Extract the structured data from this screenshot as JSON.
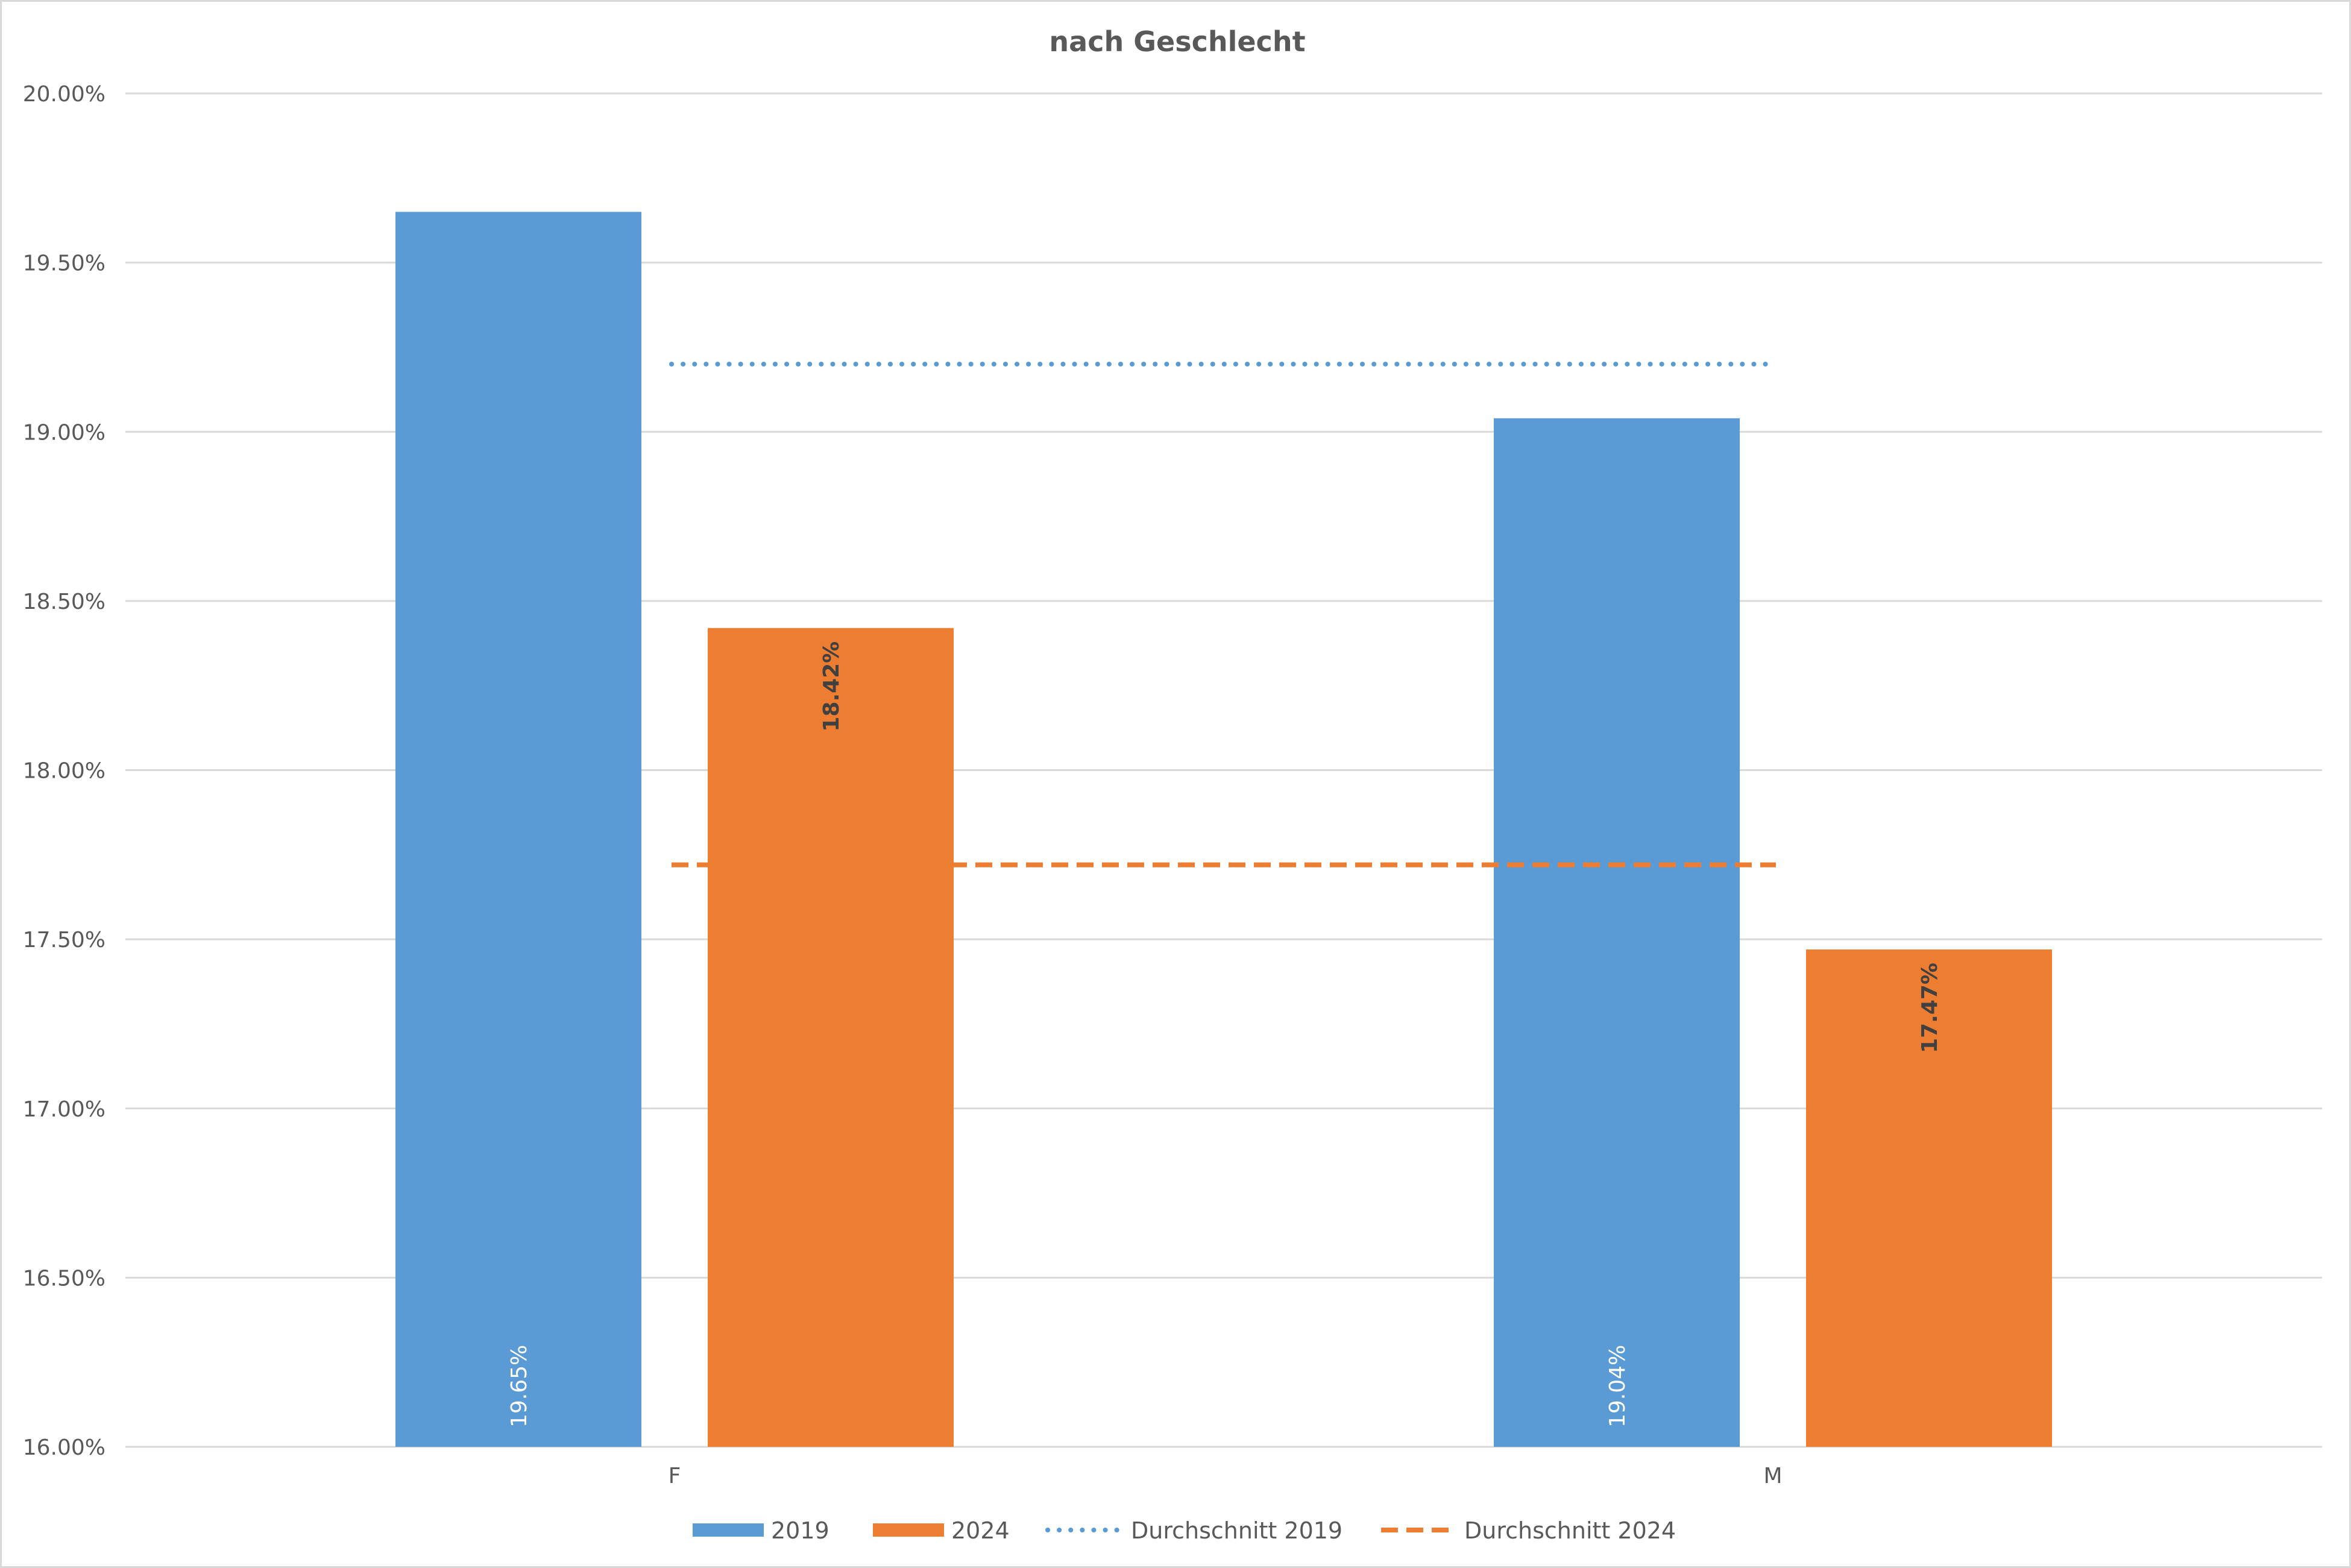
{
  "chart_data": {
    "type": "bar",
    "title": "nach Geschlecht",
    "xlabel": "",
    "ylabel": "",
    "categories": [
      "F",
      "M"
    ],
    "ylim": [
      0.16,
      0.2
    ],
    "y_ticks": [
      0.16,
      0.165,
      0.17,
      0.175,
      0.18,
      0.185,
      0.19,
      0.195,
      0.2
    ],
    "y_tick_labels": [
      "16.00%",
      "16.50%",
      "17.00%",
      "17.50%",
      "18.00%",
      "18.50%",
      "19.00%",
      "19.50%",
      "20.00%"
    ],
    "grid": true,
    "legend_position": "bottom",
    "series": [
      {
        "name": "2019",
        "type": "bar",
        "color": "#5b9bd5",
        "values": [
          0.1965,
          0.1904
        ],
        "labels": [
          "19.65%",
          "19.04%"
        ],
        "label_color": "#ffffff",
        "label_weight": "normal",
        "label_anchor": "bottom"
      },
      {
        "name": "2024",
        "type": "bar",
        "color": "#ed7d31",
        "values": [
          0.1842,
          0.1747
        ],
        "labels": [
          "18.42%",
          "17.47%"
        ],
        "label_color": "#404040",
        "label_weight": "bold",
        "label_anchor": "top"
      },
      {
        "name": "Durchschnitt 2019",
        "type": "line",
        "style": "dotted",
        "color": "#5b9bd5",
        "value": 0.192
      },
      {
        "name": "Durchschnitt 2024",
        "type": "line",
        "style": "dashed",
        "color": "#ed7d31",
        "value": 0.1772
      }
    ]
  }
}
